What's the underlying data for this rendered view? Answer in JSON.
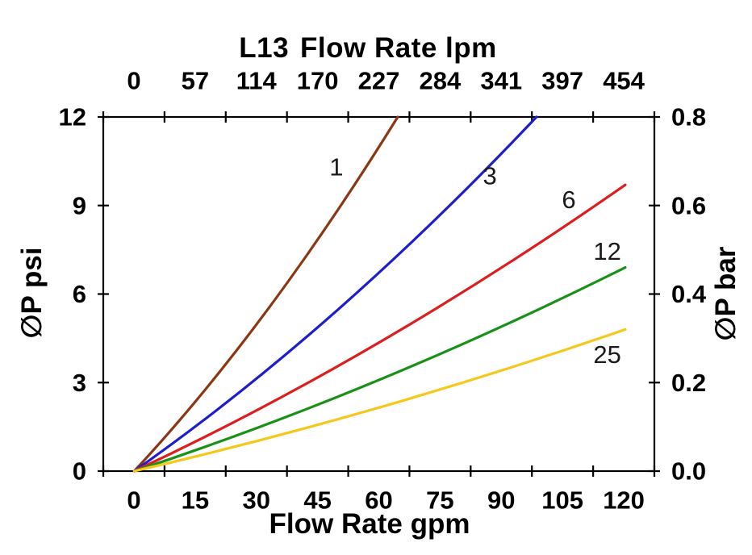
{
  "chart_data": {
    "type": "line",
    "model": "L13",
    "title": "L13 Flow Rate lpm",
    "top_axis": {
      "label": "Flow Rate lpm",
      "tick_labels": [
        "0",
        "57",
        "114",
        "170",
        "227",
        "284",
        "341",
        "397",
        "454"
      ],
      "range": [
        0,
        454
      ]
    },
    "bottom_axis": {
      "label": "Flow Rate gpm",
      "tick_labels": [
        "0",
        "15",
        "30",
        "45",
        "60",
        "75",
        "90",
        "105",
        "120"
      ],
      "range": [
        0,
        120
      ]
    },
    "left_axis": {
      "label": "∅P psi",
      "tick_labels": [
        "0",
        "3",
        "6",
        "9",
        "12"
      ],
      "range": [
        0,
        12
      ]
    },
    "right_axis": {
      "label": "∅P bar",
      "tick_labels": [
        "0.0",
        "0.2",
        "0.4",
        "0.6",
        "0.8"
      ],
      "range": [
        0,
        0.8
      ]
    },
    "axis_color": "#000000",
    "curve_label_color": "#1a1a1a",
    "grid": false,
    "legend": "inline curve labels",
    "series": [
      {
        "name": "1",
        "color": "#8C3714",
        "points_gpm_psi": [
          [
            0,
            0
          ],
          [
            32.2,
            5.4
          ],
          [
            64.4,
            12
          ]
        ],
        "label_at_gpm_psi": [
          49.4,
          10.3
        ]
      },
      {
        "name": "3",
        "color": "#1E1ECD",
        "points_gpm_psi": [
          [
            0,
            0
          ],
          [
            49.2,
            5.4
          ],
          [
            98.3,
            12
          ]
        ],
        "label_at_gpm_psi": [
          86.9,
          10.0
        ]
      },
      {
        "name": "6",
        "color": "#DC1E1E",
        "points_gpm_psi": [
          [
            0,
            0
          ],
          [
            60,
            4.37
          ],
          [
            120,
            9.7
          ]
        ],
        "label_at_gpm_psi": [
          106.2,
          9.2
        ]
      },
      {
        "name": "12",
        "color": "#199119",
        "points_gpm_psi": [
          [
            0,
            0
          ],
          [
            60,
            3.1
          ],
          [
            120,
            6.9
          ]
        ],
        "label_at_gpm_psi": [
          115.6,
          7.45
        ]
      },
      {
        "name": "25",
        "color": "#F5C81E",
        "points_gpm_psi": [
          [
            0,
            0
          ],
          [
            60,
            2.16
          ],
          [
            120,
            4.8
          ]
        ],
        "label_at_gpm_psi": [
          115.6,
          3.95
        ]
      }
    ]
  }
}
